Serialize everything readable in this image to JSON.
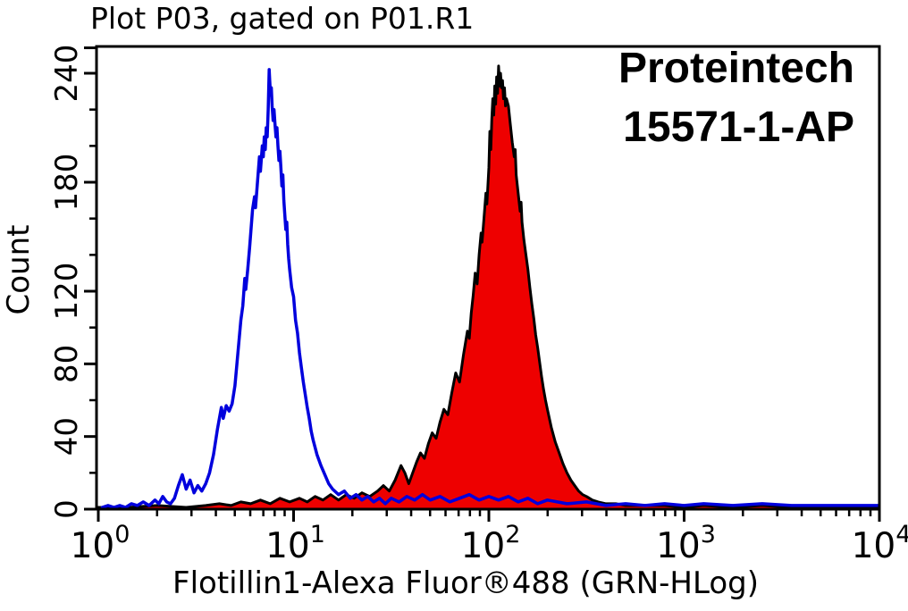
{
  "chart_data": {
    "type": "area",
    "title": "Plot P03, gated on P01.R1",
    "xlabel": "Flotillin1-Alexa Fluor®488 (GRN-HLog)",
    "ylabel": "Count",
    "annotation": {
      "line1": "Proteintech",
      "line2": "15571-1-AP"
    },
    "x_axis": {
      "scale": "log10",
      "decade_exponents": [
        0,
        1,
        2,
        3,
        4
      ],
      "tick_label_base": "10",
      "minor_multiples": [
        2,
        3,
        4,
        5,
        6,
        7,
        8,
        9
      ],
      "range_log10": [
        0,
        4
      ]
    },
    "y_axis": {
      "range": [
        0,
        255
      ],
      "major_ticks": [
        0,
        40,
        80,
        120,
        180,
        240
      ],
      "major_tick_labels": [
        "0",
        "40",
        "80",
        "120",
        "180",
        "240"
      ],
      "minor_ticks": [
        20,
        60,
        100,
        140,
        160,
        200,
        220
      ],
      "unlabeled_top_tick": 254,
      "grid": false
    },
    "colors": {
      "background": "#ffffff",
      "axis": "#000000",
      "blue_series_stroke": "#0000dd",
      "red_series_fill": "#ee0000",
      "red_series_stroke": "#000000",
      "text": "#000000"
    },
    "legend": "none",
    "series": [
      {
        "name": "red-filled-histogram",
        "style": "filled",
        "peak_log10x": 2.05,
        "peak_count": 244,
        "points_log10x_count": [
          [
            0.0,
            1
          ],
          [
            0.15,
            1
          ],
          [
            0.3,
            2
          ],
          [
            0.45,
            1
          ],
          [
            0.55,
            2
          ],
          [
            0.62,
            3
          ],
          [
            0.68,
            2
          ],
          [
            0.73,
            4
          ],
          [
            0.78,
            3
          ],
          [
            0.83,
            5
          ],
          [
            0.88,
            3
          ],
          [
            0.93,
            6
          ],
          [
            0.98,
            4
          ],
          [
            1.03,
            6
          ],
          [
            1.07,
            4
          ],
          [
            1.11,
            7
          ],
          [
            1.15,
            5
          ],
          [
            1.19,
            8
          ],
          [
            1.23,
            5
          ],
          [
            1.27,
            8
          ],
          [
            1.31,
            6
          ],
          [
            1.35,
            9
          ],
          [
            1.39,
            7
          ],
          [
            1.43,
            10
          ],
          [
            1.46,
            13
          ],
          [
            1.49,
            10
          ],
          [
            1.52,
            16
          ],
          [
            1.55,
            24
          ],
          [
            1.57,
            20
          ],
          [
            1.59,
            14
          ],
          [
            1.61,
            20
          ],
          [
            1.63,
            26
          ],
          [
            1.65,
            31
          ],
          [
            1.67,
            28
          ],
          [
            1.69,
            36
          ],
          [
            1.71,
            42
          ],
          [
            1.73,
            39
          ],
          [
            1.75,
            48
          ],
          [
            1.77,
            55
          ],
          [
            1.79,
            52
          ],
          [
            1.81,
            64
          ],
          [
            1.83,
            75
          ],
          [
            1.85,
            70
          ],
          [
            1.87,
            85
          ],
          [
            1.89,
            98
          ],
          [
            1.9,
            94
          ],
          [
            1.91,
            108
          ],
          [
            1.92,
            118
          ],
          [
            1.93,
            130
          ],
          [
            1.94,
            124
          ],
          [
            1.95,
            140
          ],
          [
            1.96,
            152
          ],
          [
            1.965,
            147
          ],
          [
            1.975,
            160
          ],
          [
            1.985,
            174
          ],
          [
            1.99,
            168
          ],
          [
            2.0,
            188
          ],
          [
            2.005,
            208
          ],
          [
            2.01,
            198
          ],
          [
            2.015,
            215
          ],
          [
            2.02,
            226
          ],
          [
            2.025,
            217
          ],
          [
            2.03,
            233
          ],
          [
            2.035,
            223
          ],
          [
            2.04,
            238
          ],
          [
            2.045,
            229
          ],
          [
            2.05,
            244
          ],
          [
            2.055,
            233
          ],
          [
            2.06,
            240
          ],
          [
            2.065,
            232
          ],
          [
            2.07,
            236
          ],
          [
            2.075,
            226
          ],
          [
            2.08,
            232
          ],
          [
            2.085,
            222
          ],
          [
            2.09,
            226
          ],
          [
            2.1,
            222
          ],
          [
            2.11,
            212
          ],
          [
            2.12,
            202
          ],
          [
            2.13,
            194
          ],
          [
            2.135,
            198
          ],
          [
            2.14,
            184
          ],
          [
            2.15,
            174
          ],
          [
            2.16,
            164
          ],
          [
            2.165,
            169
          ],
          [
            2.17,
            158
          ],
          [
            2.18,
            148
          ],
          [
            2.19,
            140
          ],
          [
            2.2,
            132
          ],
          [
            2.21,
            122
          ],
          [
            2.22,
            113
          ],
          [
            2.23,
            105
          ],
          [
            2.24,
            96
          ],
          [
            2.25,
            89
          ],
          [
            2.26,
            81
          ],
          [
            2.27,
            73
          ],
          [
            2.28,
            66
          ],
          [
            2.29,
            60
          ],
          [
            2.3,
            55
          ],
          [
            2.32,
            45
          ],
          [
            2.34,
            37
          ],
          [
            2.36,
            31
          ],
          [
            2.38,
            25
          ],
          [
            2.4,
            20
          ],
          [
            2.42,
            16
          ],
          [
            2.44,
            13
          ],
          [
            2.46,
            10
          ],
          [
            2.48,
            8
          ],
          [
            2.5,
            7
          ],
          [
            2.53,
            5
          ],
          [
            2.56,
            4
          ],
          [
            2.6,
            3
          ],
          [
            2.65,
            3
          ],
          [
            2.7,
            2
          ],
          [
            2.8,
            2
          ],
          [
            2.9,
            2
          ],
          [
            3.0,
            1
          ],
          [
            3.1,
            2
          ],
          [
            3.25,
            1
          ],
          [
            3.4,
            2
          ],
          [
            3.55,
            1
          ],
          [
            3.7,
            1
          ],
          [
            3.85,
            1
          ],
          [
            4.0,
            1
          ]
        ]
      },
      {
        "name": "blue-outline-histogram",
        "style": "outline",
        "peak_log10x": 0.875,
        "peak_count": 242,
        "points_log10x_count": [
          [
            0.02,
            1
          ],
          [
            0.05,
            2
          ],
          [
            0.08,
            1
          ],
          [
            0.11,
            2
          ],
          [
            0.14,
            1
          ],
          [
            0.17,
            3
          ],
          [
            0.2,
            2
          ],
          [
            0.23,
            4
          ],
          [
            0.26,
            2
          ],
          [
            0.29,
            5
          ],
          [
            0.31,
            3
          ],
          [
            0.33,
            7
          ],
          [
            0.35,
            4
          ],
          [
            0.37,
            3
          ],
          [
            0.39,
            6
          ],
          [
            0.41,
            13
          ],
          [
            0.43,
            19
          ],
          [
            0.45,
            11
          ],
          [
            0.47,
            16
          ],
          [
            0.49,
            9
          ],
          [
            0.51,
            13
          ],
          [
            0.53,
            10
          ],
          [
            0.55,
            14
          ],
          [
            0.57,
            20
          ],
          [
            0.59,
            30
          ],
          [
            0.61,
            44
          ],
          [
            0.63,
            56
          ],
          [
            0.64,
            50
          ],
          [
            0.655,
            57
          ],
          [
            0.67,
            54
          ],
          [
            0.685,
            58
          ],
          [
            0.7,
            68
          ],
          [
            0.71,
            80
          ],
          [
            0.72,
            92
          ],
          [
            0.73,
            104
          ],
          [
            0.74,
            112
          ],
          [
            0.75,
            127
          ],
          [
            0.755,
            121
          ],
          [
            0.765,
            132
          ],
          [
            0.775,
            144
          ],
          [
            0.785,
            158
          ],
          [
            0.79,
            165
          ],
          [
            0.8,
            172
          ],
          [
            0.805,
            166
          ],
          [
            0.815,
            180
          ],
          [
            0.825,
            194
          ],
          [
            0.83,
            186
          ],
          [
            0.84,
            200
          ],
          [
            0.845,
            194
          ],
          [
            0.85,
            205
          ],
          [
            0.855,
            198
          ],
          [
            0.86,
            210
          ],
          [
            0.865,
            205
          ],
          [
            0.87,
            220
          ],
          [
            0.875,
            242
          ],
          [
            0.878,
            236
          ],
          [
            0.882,
            228
          ],
          [
            0.886,
            232
          ],
          [
            0.89,
            222
          ],
          [
            0.895,
            214
          ],
          [
            0.9,
            220
          ],
          [
            0.905,
            212
          ],
          [
            0.91,
            205
          ],
          [
            0.915,
            210
          ],
          [
            0.92,
            200
          ],
          [
            0.925,
            192
          ],
          [
            0.93,
            197
          ],
          [
            0.935,
            188
          ],
          [
            0.94,
            178
          ],
          [
            0.945,
            184
          ],
          [
            0.95,
            170
          ],
          [
            0.955,
            162
          ],
          [
            0.96,
            154
          ],
          [
            0.965,
            158
          ],
          [
            0.97,
            146
          ],
          [
            0.975,
            138
          ],
          [
            0.98,
            132
          ],
          [
            0.99,
            122
          ],
          [
            1.0,
            117
          ],
          [
            1.01,
            104
          ],
          [
            1.02,
            97
          ],
          [
            1.03,
            86
          ],
          [
            1.04,
            78
          ],
          [
            1.05,
            70
          ],
          [
            1.06,
            63
          ],
          [
            1.07,
            56
          ],
          [
            1.08,
            50
          ],
          [
            1.09,
            43
          ],
          [
            1.1,
            38
          ],
          [
            1.12,
            30
          ],
          [
            1.14,
            24
          ],
          [
            1.16,
            19
          ],
          [
            1.18,
            14
          ],
          [
            1.2,
            11
          ],
          [
            1.23,
            8
          ],
          [
            1.26,
            10
          ],
          [
            1.29,
            6
          ],
          [
            1.32,
            8
          ],
          [
            1.35,
            5
          ],
          [
            1.38,
            7
          ],
          [
            1.41,
            4
          ],
          [
            1.44,
            6
          ],
          [
            1.47,
            3
          ],
          [
            1.5,
            6
          ],
          [
            1.54,
            4
          ],
          [
            1.58,
            7
          ],
          [
            1.62,
            5
          ],
          [
            1.66,
            8
          ],
          [
            1.7,
            5
          ],
          [
            1.75,
            7
          ],
          [
            1.8,
            4
          ],
          [
            1.85,
            6
          ],
          [
            1.9,
            8
          ],
          [
            1.95,
            5
          ],
          [
            2.0,
            7
          ],
          [
            2.05,
            5
          ],
          [
            2.1,
            7
          ],
          [
            2.15,
            4
          ],
          [
            2.2,
            6
          ],
          [
            2.25,
            3
          ],
          [
            2.3,
            5
          ],
          [
            2.4,
            3
          ],
          [
            2.5,
            4
          ],
          [
            2.6,
            2
          ],
          [
            2.7,
            3
          ],
          [
            2.8,
            2
          ],
          [
            2.9,
            3
          ],
          [
            3.0,
            2
          ],
          [
            3.1,
            3
          ],
          [
            3.25,
            2
          ],
          [
            3.4,
            3
          ],
          [
            3.55,
            2
          ],
          [
            3.7,
            2
          ],
          [
            3.85,
            2
          ],
          [
            4.0,
            2
          ]
        ]
      }
    ]
  }
}
